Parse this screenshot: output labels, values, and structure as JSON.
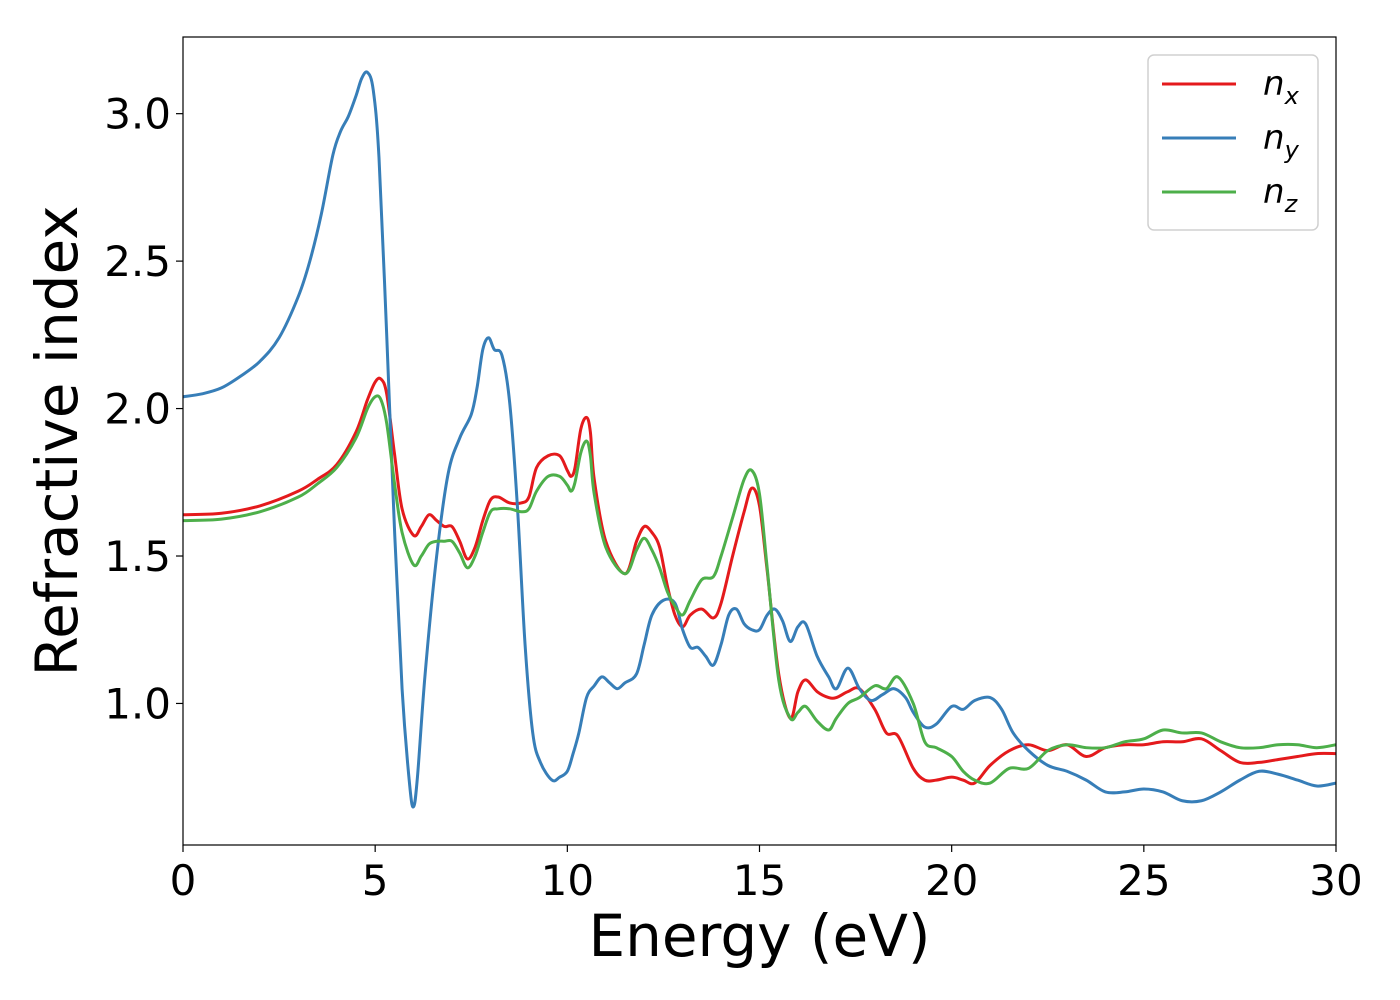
{
  "chart_data": {
    "type": "line",
    "xlabel": "Energy (eV)",
    "ylabel": "Refractive index",
    "xlim": [
      0,
      30
    ],
    "ylim": [
      0.52,
      3.26
    ],
    "xticks": [
      0,
      5,
      10,
      15,
      20,
      25,
      30
    ],
    "xtick_labels": [
      "0",
      "5",
      "10",
      "15",
      "20",
      "25",
      "30"
    ],
    "yticks": [
      1.0,
      1.5,
      2.0,
      2.5,
      3.0
    ],
    "ytick_labels": [
      "1.0",
      "1.5",
      "2.0",
      "2.5",
      "3.0"
    ],
    "grid": false,
    "legend_position": "top-right",
    "series": [
      {
        "name": "n_x",
        "base": "n",
        "sub": "x",
        "color": "#e41a1c",
        "x": [
          0,
          1,
          2,
          3,
          3.5,
          4,
          4.5,
          4.8,
          5.0,
          5.15,
          5.3,
          5.5,
          5.7,
          6.0,
          6.2,
          6.4,
          6.6,
          6.8,
          7.0,
          7.2,
          7.4,
          7.6,
          7.8,
          8.0,
          8.2,
          8.5,
          8.8,
          9.0,
          9.2,
          9.5,
          9.8,
          10.0,
          10.1,
          10.2,
          10.35,
          10.5,
          10.6,
          10.7,
          11.0,
          11.5,
          11.8,
          12.0,
          12.2,
          12.4,
          12.6,
          12.8,
          13.0,
          13.2,
          13.5,
          13.8,
          14.0,
          14.3,
          14.6,
          14.8,
          15.0,
          15.2,
          15.5,
          15.8,
          16.0,
          16.2,
          16.5,
          16.8,
          17.0,
          17.3,
          17.6,
          18.0,
          18.3,
          18.6,
          19.0,
          19.3,
          19.6,
          20.0,
          20.3,
          20.6,
          21.0,
          21.5,
          22.0,
          22.5,
          23.0,
          23.5,
          24.0,
          24.5,
          25.0,
          25.5,
          26.0,
          26.5,
          27.0,
          27.5,
          28.0,
          28.5,
          29.0,
          29.5,
          30.0
        ],
        "y": [
          1.64,
          1.645,
          1.67,
          1.72,
          1.76,
          1.81,
          1.92,
          2.03,
          2.09,
          2.1,
          2.05,
          1.85,
          1.66,
          1.57,
          1.6,
          1.64,
          1.62,
          1.6,
          1.6,
          1.55,
          1.49,
          1.53,
          1.62,
          1.69,
          1.7,
          1.68,
          1.68,
          1.7,
          1.8,
          1.84,
          1.84,
          1.79,
          1.77,
          1.8,
          1.93,
          1.97,
          1.92,
          1.76,
          1.55,
          1.44,
          1.55,
          1.6,
          1.58,
          1.53,
          1.4,
          1.3,
          1.26,
          1.3,
          1.32,
          1.29,
          1.34,
          1.5,
          1.65,
          1.73,
          1.67,
          1.45,
          1.1,
          0.95,
          1.04,
          1.08,
          1.04,
          1.02,
          1.02,
          1.04,
          1.05,
          0.98,
          0.9,
          0.89,
          0.78,
          0.74,
          0.74,
          0.75,
          0.74,
          0.73,
          0.79,
          0.84,
          0.86,
          0.84,
          0.86,
          0.82,
          0.85,
          0.86,
          0.86,
          0.87,
          0.87,
          0.88,
          0.84,
          0.8,
          0.8,
          0.81,
          0.82,
          0.83,
          0.83
        ]
      },
      {
        "name": "n_y",
        "base": "n",
        "sub": "y",
        "color": "#377eb8",
        "x": [
          0,
          0.5,
          1,
          1.5,
          2,
          2.5,
          3,
          3.3,
          3.6,
          3.9,
          4.1,
          4.3,
          4.5,
          4.65,
          4.8,
          4.95,
          5.1,
          5.3,
          5.5,
          5.7,
          5.9,
          6.0,
          6.1,
          6.3,
          6.6,
          6.9,
          7.2,
          7.5,
          7.65,
          7.8,
          7.95,
          8.1,
          8.3,
          8.5,
          8.7,
          8.9,
          9.1,
          9.3,
          9.6,
          9.8,
          10.0,
          10.15,
          10.3,
          10.5,
          10.7,
          10.9,
          11.1,
          11.3,
          11.5,
          11.8,
          12.0,
          12.2,
          12.5,
          12.8,
          13.0,
          13.2,
          13.4,
          13.6,
          13.8,
          14.0,
          14.2,
          14.4,
          14.6,
          14.8,
          15.0,
          15.2,
          15.4,
          15.6,
          15.8,
          16.0,
          16.2,
          16.5,
          16.8,
          17.0,
          17.3,
          17.6,
          17.9,
          18.2,
          18.5,
          18.8,
          19.0,
          19.3,
          19.6,
          20.0,
          20.3,
          20.6,
          21.0,
          21.3,
          21.6,
          22.0,
          22.5,
          23.0,
          23.5,
          24.0,
          24.5,
          25.0,
          25.5,
          26.0,
          26.5,
          27.0,
          27.5,
          28.0,
          28.5,
          29.0,
          29.5,
          30.0
        ],
        "y": [
          2.04,
          2.05,
          2.07,
          2.11,
          2.16,
          2.24,
          2.38,
          2.5,
          2.66,
          2.86,
          2.94,
          2.99,
          3.06,
          3.12,
          3.14,
          3.08,
          2.85,
          2.25,
          1.6,
          1.05,
          0.72,
          0.65,
          0.75,
          1.1,
          1.5,
          1.78,
          1.9,
          1.98,
          2.07,
          2.2,
          2.24,
          2.2,
          2.18,
          2.02,
          1.67,
          1.2,
          0.9,
          0.8,
          0.74,
          0.75,
          0.77,
          0.83,
          0.9,
          1.02,
          1.06,
          1.09,
          1.07,
          1.05,
          1.07,
          1.1,
          1.2,
          1.3,
          1.35,
          1.34,
          1.25,
          1.19,
          1.19,
          1.16,
          1.13,
          1.2,
          1.3,
          1.32,
          1.27,
          1.25,
          1.25,
          1.3,
          1.32,
          1.28,
          1.21,
          1.26,
          1.27,
          1.16,
          1.09,
          1.05,
          1.12,
          1.05,
          1.01,
          1.03,
          1.05,
          1.02,
          0.97,
          0.92,
          0.93,
          0.99,
          0.98,
          1.01,
          1.02,
          0.98,
          0.9,
          0.84,
          0.79,
          0.77,
          0.74,
          0.7,
          0.7,
          0.71,
          0.7,
          0.67,
          0.67,
          0.7,
          0.74,
          0.77,
          0.76,
          0.74,
          0.72,
          0.73
        ]
      },
      {
        "name": "n_z",
        "base": "n",
        "sub": "z",
        "color": "#4daf4a",
        "x": [
          0,
          1,
          2,
          3,
          3.5,
          4,
          4.5,
          4.8,
          5.0,
          5.15,
          5.3,
          5.5,
          5.7,
          6.0,
          6.2,
          6.4,
          6.6,
          6.8,
          7.0,
          7.2,
          7.4,
          7.6,
          7.8,
          8.0,
          8.2,
          8.5,
          8.8,
          9.0,
          9.2,
          9.5,
          9.8,
          10.0,
          10.1,
          10.2,
          10.35,
          10.5,
          10.6,
          10.7,
          11.0,
          11.5,
          11.8,
          12.0,
          12.2,
          12.4,
          12.6,
          12.8,
          13.0,
          13.2,
          13.5,
          13.8,
          14.0,
          14.3,
          14.6,
          14.8,
          15.0,
          15.2,
          15.5,
          15.8,
          16.0,
          16.2,
          16.5,
          16.8,
          17.0,
          17.3,
          17.6,
          18.0,
          18.3,
          18.6,
          19.0,
          19.3,
          19.6,
          20.0,
          20.3,
          20.6,
          21.0,
          21.5,
          22.0,
          22.5,
          23.0,
          23.5,
          24.0,
          24.5,
          25.0,
          25.5,
          26.0,
          26.5,
          27.0,
          27.5,
          28.0,
          28.5,
          29.0,
          29.5,
          30.0
        ],
        "y": [
          1.62,
          1.625,
          1.65,
          1.7,
          1.745,
          1.8,
          1.9,
          2.0,
          2.04,
          2.03,
          1.95,
          1.75,
          1.58,
          1.47,
          1.5,
          1.54,
          1.55,
          1.55,
          1.55,
          1.51,
          1.46,
          1.5,
          1.58,
          1.65,
          1.66,
          1.66,
          1.65,
          1.66,
          1.72,
          1.77,
          1.77,
          1.74,
          1.72,
          1.75,
          1.85,
          1.89,
          1.84,
          1.71,
          1.53,
          1.44,
          1.52,
          1.56,
          1.52,
          1.46,
          1.38,
          1.33,
          1.3,
          1.35,
          1.42,
          1.43,
          1.5,
          1.63,
          1.76,
          1.79,
          1.71,
          1.46,
          1.08,
          0.95,
          0.97,
          0.99,
          0.94,
          0.91,
          0.95,
          1.0,
          1.02,
          1.06,
          1.05,
          1.09,
          1.0,
          0.87,
          0.85,
          0.82,
          0.77,
          0.74,
          0.73,
          0.78,
          0.78,
          0.84,
          0.86,
          0.85,
          0.85,
          0.87,
          0.88,
          0.91,
          0.9,
          0.9,
          0.87,
          0.85,
          0.85,
          0.86,
          0.86,
          0.85,
          0.86
        ]
      }
    ]
  }
}
